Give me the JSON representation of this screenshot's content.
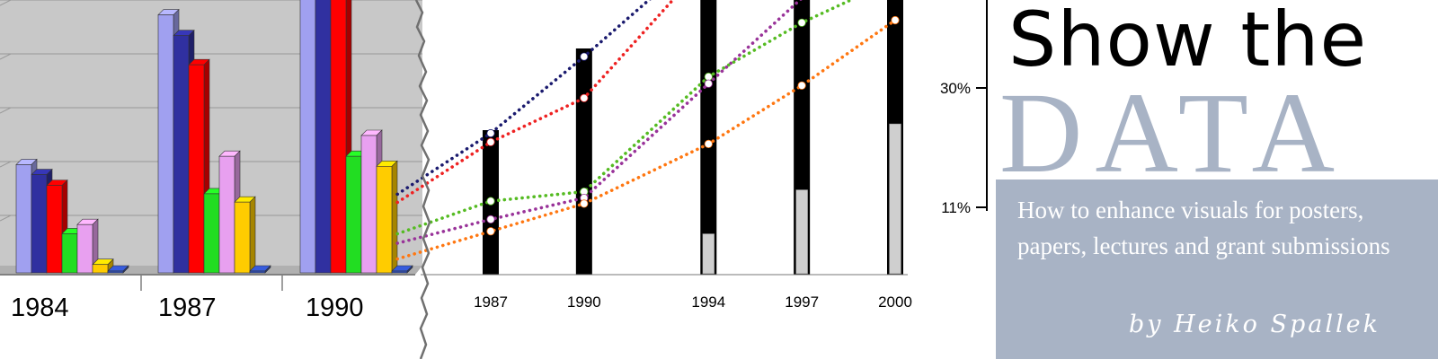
{
  "banner": {
    "title_line1": "Show the",
    "title_line2": "DATA",
    "subtitle": "How to enhance visuals for posters, papers, lectures and grant submissions",
    "author": "by Heiko Spallek"
  },
  "chart_data": [
    {
      "type": "bar",
      "style": "3d-clustered",
      "categories": [
        "1984",
        "1987",
        "1990"
      ],
      "series": [
        {
          "color": "#a0a0f0",
          "values": [
            130,
            310,
            330
          ]
        },
        {
          "color": "#3030a0",
          "values": [
            118,
            285,
            330
          ]
        },
        {
          "color": "#ff0000",
          "values": [
            105,
            250,
            330
          ]
        },
        {
          "color": "#22dd22",
          "values": [
            47,
            95,
            140
          ]
        },
        {
          "color": "#e8a0f0",
          "values": [
            58,
            140,
            165
          ]
        },
        {
          "color": "#ffcc00",
          "values": [
            10,
            85,
            128
          ]
        },
        {
          "color": "#3050c0",
          "values": [
            0,
            0,
            0
          ]
        }
      ],
      "ylim": [
        0,
        330
      ],
      "grid": true,
      "background": "#c8c8c8"
    },
    {
      "type": "line",
      "style": "dotted-lines-with-black-bars",
      "categories": [
        "1987",
        "1990",
        "1994",
        "1997",
        "2000"
      ],
      "x": [
        1987,
        1990,
        1994,
        1997,
        2000
      ],
      "ylim": [
        0,
        46
      ],
      "yticks": [
        "11%",
        "30%"
      ],
      "ytick_values": [
        11,
        30
      ],
      "bars": [
        {
          "year": 1987,
          "value": 23,
          "gray": 0
        },
        {
          "year": 1990,
          "value": 36,
          "gray": 0
        },
        {
          "year": 1994,
          "value": 46,
          "gray": 6.5
        },
        {
          "year": 1997,
          "value": 46,
          "gray": 13.5
        },
        {
          "year": 2000,
          "value": 46,
          "gray": 24
        }
      ],
      "series": [
        {
          "color": "#1a1a6e",
          "x": [
            1984,
            1987,
            1990,
            1994
          ],
          "values": [
            12.8,
            22.5,
            34.7,
            52
          ]
        },
        {
          "color": "#ee2222",
          "x": [
            1984,
            1987,
            1990,
            1994
          ],
          "values": [
            11.5,
            21.1,
            28.1,
            50
          ]
        },
        {
          "color": "#55bb22",
          "x": [
            1984,
            1987,
            1990,
            1994,
            1997,
            2000
          ],
          "values": [
            6.5,
            11.7,
            13.2,
            31.5,
            40.1,
            47
          ]
        },
        {
          "color": "#993399",
          "x": [
            1984,
            1987,
            1990,
            1994,
            1997,
            2000
          ],
          "values": [
            5.0,
            8.8,
            12.2,
            30.4,
            44,
            50
          ]
        },
        {
          "color": "#ff7711",
          "x": [
            1984,
            1987,
            1990,
            1994,
            1997,
            2000
          ],
          "values": [
            2.5,
            6.9,
            11.3,
            20.8,
            30.1,
            40.5
          ]
        }
      ],
      "grid": false
    }
  ]
}
